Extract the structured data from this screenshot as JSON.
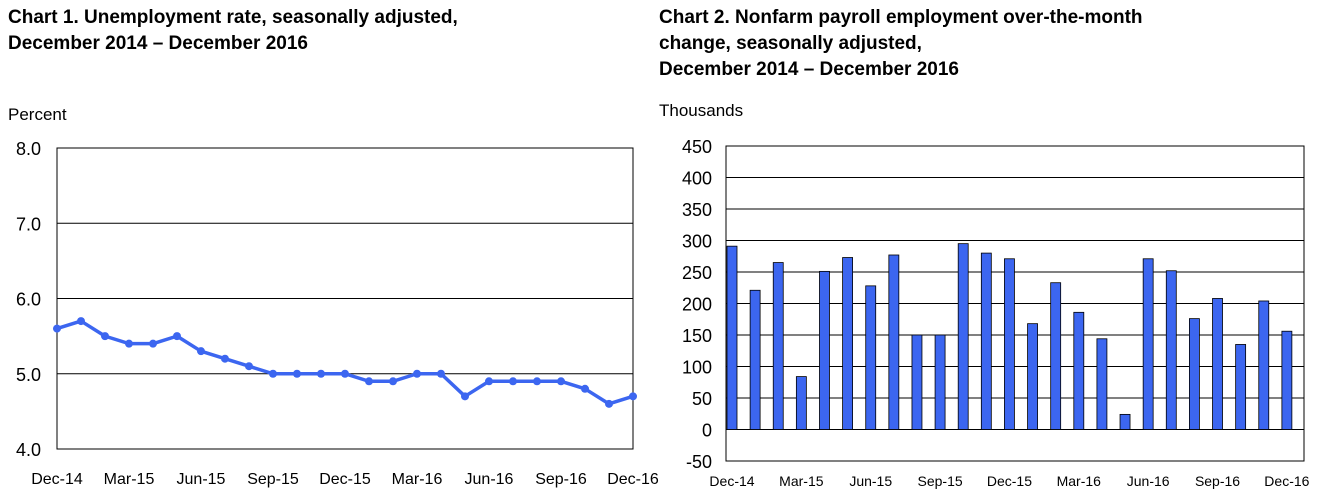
{
  "chart_data": [
    {
      "type": "line",
      "title_lines": [
        "Chart 1. Unemployment rate, seasonally adjusted,",
        "December 2014 – December 2016"
      ],
      "unit_label": "Percent",
      "x_tick_labels": [
        "Dec-14",
        "Mar-15",
        "Jun-15",
        "Sep-15",
        "Dec-15",
        "Mar-16",
        "Jun-16",
        "Sep-16",
        "Dec-16"
      ],
      "y_tick_labels": [
        "8.0",
        "7.0",
        "6.0",
        "5.0",
        "4.0"
      ],
      "ylim": [
        4.0,
        8.0
      ],
      "grid": true,
      "series_color": "#3c66f0",
      "series": [
        {
          "values": [
            5.6,
            5.7,
            5.5,
            5.4,
            5.4,
            5.5,
            5.3,
            5.2,
            5.1,
            5.0,
            5.0,
            5.0,
            5.0,
            4.9,
            4.9,
            5.0,
            5.0,
            4.7,
            4.9,
            4.9,
            4.9,
            4.9,
            4.8,
            4.6,
            4.7
          ]
        }
      ]
    },
    {
      "type": "bar",
      "title_lines": [
        "Chart 2. Nonfarm payroll employment over-the-month",
        "change, seasonally adjusted,",
        "December 2014 – December 2016"
      ],
      "unit_label": "Thousands",
      "x_tick_labels": [
        "Dec-14",
        "Mar-15",
        "Jun-15",
        "Sep-15",
        "Dec-15",
        "Mar-16",
        "Jun-16",
        "Sep-16",
        "Dec-16"
      ],
      "y_tick_labels": [
        "450",
        "400",
        "350",
        "300",
        "250",
        "200",
        "150",
        "100",
        "50",
        "0",
        "-50"
      ],
      "ylim": [
        -50,
        450
      ],
      "grid": true,
      "bar_color": "#3c66f0",
      "series": [
        {
          "values": [
            291,
            221,
            265,
            84,
            251,
            273,
            228,
            277,
            150,
            150,
            295,
            280,
            271,
            168,
            233,
            186,
            144,
            24,
            271,
            252,
            176,
            208,
            135,
            204,
            156
          ]
        }
      ]
    }
  ]
}
